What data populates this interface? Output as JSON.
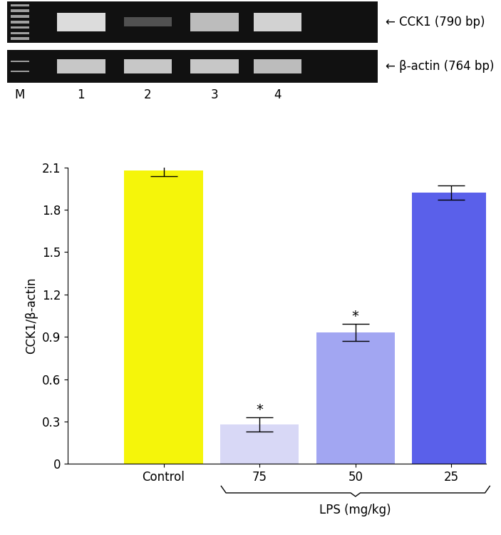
{
  "gel": {
    "lanes": [
      "M",
      "1",
      "2",
      "3",
      "4"
    ],
    "bands": [
      {
        "label": "← CCK1 (790 bp)"
      },
      {
        "label": "← β-actin (764 bp)"
      }
    ]
  },
  "chart_data": {
    "type": "bar",
    "categories": [
      "Control",
      "75",
      "50",
      "25"
    ],
    "values": [
      2.08,
      0.28,
      0.93,
      1.92
    ],
    "errors": [
      0.04,
      0.05,
      0.06,
      0.05
    ],
    "colors": [
      "#f5f50a",
      "#d8d8f6",
      "#a2a6f2",
      "#5a60ea"
    ],
    "y_label": "CCK1/β-actin",
    "ylim": [
      0,
      2.1
    ],
    "yticks": [
      0,
      0.3,
      0.6,
      0.9,
      1.2,
      1.5,
      1.8,
      2.1
    ],
    "annotations": [
      {
        "category": "75",
        "text": "*"
      },
      {
        "category": "50",
        "text": "*"
      }
    ],
    "group_label": {
      "text": "LPS (mg/kg)",
      "categories": [
        "75",
        "50",
        "25"
      ]
    }
  }
}
